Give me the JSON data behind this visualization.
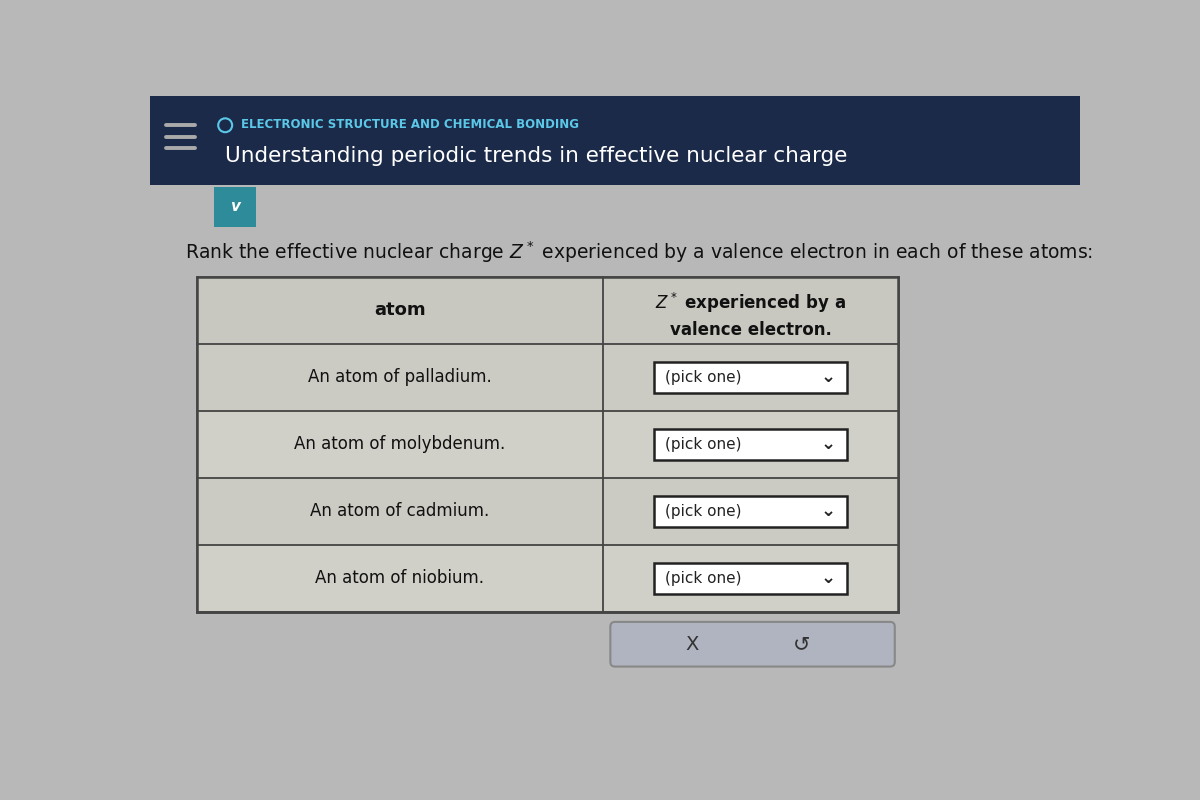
{
  "header_bg_color": "#1c2a4a",
  "header_small_text": "ELECTRONIC STRUCTURE AND CHEMICAL BONDING",
  "header_main_text": "Understanding periodic trends in effective nuclear charge",
  "body_bg_color": "#b8b8b8",
  "instruction_text": "Rank the effective nuclear charge Z* experienced by a valence electron in each of these atoms:",
  "col1_header": "atom",
  "col2_header_line1": "Z",
  "col2_header_line2": " experienced by a",
  "col2_header_line3": "valence electron.",
  "rows": [
    "An atom of palladium.",
    "An atom of molybdenum.",
    "An atom of cadmium.",
    "An atom of niobium."
  ],
  "dropdown_text": "(pick one)",
  "cell_bg": "#d0cfc8",
  "header_cell_bg": "#c8c7c0",
  "table_border_color": "#444444",
  "button_bg": "#b0b4c0",
  "button_border_color": "#888888",
  "dropdown_border_color": "#222222",
  "x_button_text": "X",
  "undo_button_text": "↺",
  "teal_tab_color": "#2e8b9a",
  "hamburger_color": "#aaaaaa",
  "small_header_color": "#5bc8e8",
  "main_header_color": "#ffffff"
}
